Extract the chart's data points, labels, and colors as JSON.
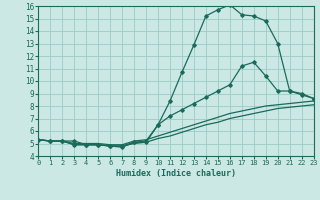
{
  "xlabel": "Humidex (Indice chaleur)",
  "bg_color": "#cce8e4",
  "grid_color": "#99ccc6",
  "line_color": "#1a6b5a",
  "xlim": [
    0,
    23
  ],
  "ylim": [
    4,
    16
  ],
  "xticks": [
    0,
    1,
    2,
    3,
    4,
    5,
    6,
    7,
    8,
    9,
    10,
    11,
    12,
    13,
    14,
    15,
    16,
    17,
    18,
    19,
    20,
    21,
    22,
    23
  ],
  "yticks": [
    4,
    5,
    6,
    7,
    8,
    9,
    10,
    11,
    12,
    13,
    14,
    15,
    16
  ],
  "series1_x": [
    0,
    1,
    2,
    3,
    4,
    5,
    6,
    7,
    8,
    9,
    10,
    11,
    12,
    13,
    14,
    15,
    16,
    17,
    18,
    19,
    20,
    21,
    22,
    23
  ],
  "series1_y": [
    5.3,
    5.2,
    5.2,
    5.2,
    4.9,
    4.9,
    4.8,
    4.7,
    5.1,
    5.2,
    6.5,
    8.4,
    10.7,
    12.9,
    15.2,
    15.7,
    16.1,
    15.3,
    15.2,
    14.8,
    13.0,
    9.2,
    9.0,
    8.6
  ],
  "series2_x": [
    0,
    1,
    2,
    3,
    4,
    5,
    6,
    7,
    8,
    9,
    10,
    11,
    12,
    13,
    14,
    15,
    16,
    17,
    18,
    19,
    20,
    21,
    22,
    23
  ],
  "series2_y": [
    5.3,
    5.2,
    5.2,
    4.9,
    4.9,
    4.9,
    4.8,
    4.8,
    5.1,
    5.1,
    6.5,
    7.2,
    7.7,
    8.2,
    8.7,
    9.2,
    9.7,
    11.2,
    11.5,
    10.4,
    9.2,
    9.2,
    8.9,
    8.6
  ],
  "series3_x": [
    0,
    1,
    2,
    3,
    4,
    5,
    6,
    7,
    8,
    9,
    10,
    11,
    12,
    13,
    14,
    15,
    16,
    17,
    18,
    19,
    20,
    21,
    22,
    23
  ],
  "series3_y": [
    5.3,
    5.2,
    5.2,
    5.0,
    5.0,
    5.0,
    4.9,
    4.9,
    5.2,
    5.3,
    5.6,
    5.9,
    6.2,
    6.5,
    6.8,
    7.1,
    7.4,
    7.6,
    7.8,
    8.0,
    8.1,
    8.2,
    8.3,
    8.4
  ],
  "series4_x": [
    0,
    1,
    2,
    3,
    4,
    5,
    6,
    7,
    8,
    9,
    10,
    11,
    12,
    13,
    14,
    15,
    16,
    17,
    18,
    19,
    20,
    21,
    22,
    23
  ],
  "series4_y": [
    5.3,
    5.2,
    5.2,
    4.9,
    4.9,
    4.9,
    4.8,
    4.8,
    5.0,
    5.1,
    5.4,
    5.6,
    5.9,
    6.2,
    6.5,
    6.7,
    7.0,
    7.2,
    7.4,
    7.6,
    7.8,
    7.9,
    8.0,
    8.1
  ]
}
